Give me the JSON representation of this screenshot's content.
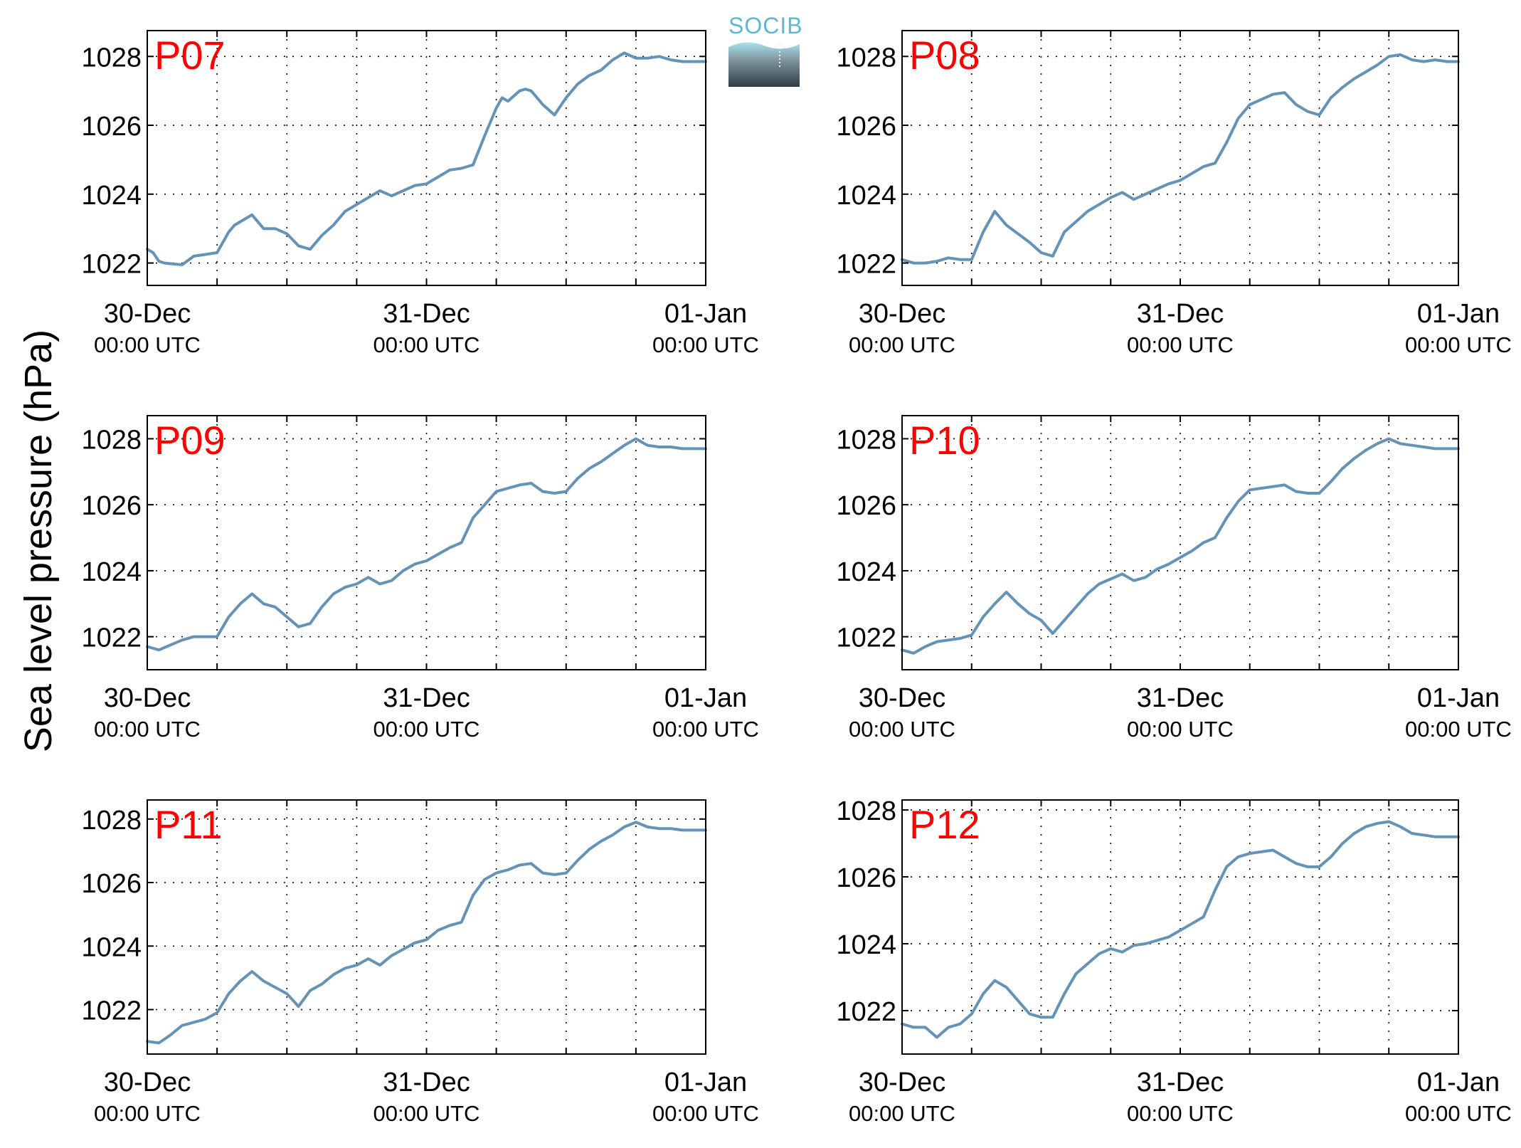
{
  "figure": {
    "ylabel": "Sea level pressure (hPa)",
    "logo_text": "SOCIB",
    "line_color": "#6593b8",
    "panel_label_color": "#ff0000"
  },
  "chart_data": [
    {
      "type": "line",
      "panel": "P07",
      "xticks": [
        {
          "date": "30-Dec",
          "time": "00:00 UTC"
        },
        {
          "date": "31-Dec",
          "time": "00:00 UTC"
        },
        {
          "date": "01-Jan",
          "time": "00:00 UTC"
        }
      ],
      "xlim_hours": [
        0,
        48
      ],
      "ylim": [
        1021.35,
        1028.75
      ],
      "yticks": [
        1022,
        1024,
        1026,
        1028
      ],
      "grid": true,
      "series": [
        {
          "x_hours": [
            0,
            0.5,
            1,
            1.5,
            2,
            3,
            4,
            5,
            6,
            7,
            7.5,
            8,
            9,
            10,
            11,
            12,
            13,
            14,
            15,
            16,
            17,
            18,
            19,
            20,
            21,
            22,
            23,
            24,
            24.5,
            25,
            26,
            27,
            28,
            29,
            30,
            30.5,
            31,
            32,
            32.5,
            33,
            34,
            35,
            36,
            37,
            38,
            39,
            40,
            41,
            42,
            43,
            44,
            45,
            46,
            47,
            48
          ],
          "y": [
            1022.4,
            1022.3,
            1022.05,
            1022,
            1021.98,
            1021.95,
            1022.2,
            1022.25,
            1022.3,
            1022.9,
            1023.1,
            1023.2,
            1023.4,
            1023.0,
            1023.0,
            1022.85,
            1022.5,
            1022.4,
            1022.8,
            1023.1,
            1023.5,
            1023.7,
            1023.9,
            1024.1,
            1023.95,
            1024.1,
            1024.25,
            1024.3,
            1024.4,
            1024.5,
            1024.7,
            1024.75,
            1024.85,
            1025.7,
            1026.5,
            1026.8,
            1026.7,
            1027.0,
            1027.05,
            1027.0,
            1026.6,
            1026.3,
            1026.8,
            1027.2,
            1027.45,
            1027.6,
            1027.9,
            1028.1,
            1027.95,
            1027.95,
            1028.0,
            1027.9,
            1027.85,
            1027.85,
            1027.85
          ]
        }
      ]
    },
    {
      "type": "line",
      "panel": "P08",
      "xticks": [
        {
          "date": "30-Dec",
          "time": "00:00 UTC"
        },
        {
          "date": "31-Dec",
          "time": "00:00 UTC"
        },
        {
          "date": "01-Jan",
          "time": "00:00 UTC"
        }
      ],
      "xlim_hours": [
        0,
        48
      ],
      "ylim": [
        1021.35,
        1028.75
      ],
      "yticks": [
        1022,
        1024,
        1026,
        1028
      ],
      "grid": true,
      "series": [
        {
          "x_hours": [
            0,
            1,
            2,
            3,
            4,
            5,
            6,
            7,
            8,
            9,
            10,
            11,
            12,
            13,
            14,
            15,
            16,
            17,
            18,
            19,
            20,
            21,
            22,
            23,
            24,
            25,
            26,
            27,
            28,
            29,
            30,
            31,
            32,
            33,
            34,
            35,
            36,
            37,
            38,
            39,
            40,
            41,
            42,
            43,
            44,
            45,
            46,
            47,
            48
          ],
          "y": [
            1022.1,
            1022.0,
            1022.0,
            1022.05,
            1022.15,
            1022.1,
            1022.1,
            1022.9,
            1023.5,
            1023.1,
            1022.85,
            1022.6,
            1022.3,
            1022.2,
            1022.9,
            1023.2,
            1023.5,
            1023.7,
            1023.9,
            1024.05,
            1023.85,
            1024.0,
            1024.15,
            1024.3,
            1024.4,
            1024.6,
            1024.8,
            1024.9,
            1025.5,
            1026.2,
            1026.6,
            1026.75,
            1026.9,
            1026.95,
            1026.6,
            1026.4,
            1026.3,
            1026.8,
            1027.1,
            1027.35,
            1027.55,
            1027.75,
            1028.0,
            1028.05,
            1027.9,
            1027.85,
            1027.9,
            1027.85,
            1027.85
          ]
        }
      ]
    },
    {
      "type": "line",
      "panel": "P09",
      "xticks": [
        {
          "date": "30-Dec",
          "time": "00:00 UTC"
        },
        {
          "date": "31-Dec",
          "time": "00:00 UTC"
        },
        {
          "date": "01-Jan",
          "time": "00:00 UTC"
        }
      ],
      "xlim_hours": [
        0,
        48
      ],
      "ylim": [
        1021.0,
        1028.7
      ],
      "yticks": [
        1022,
        1024,
        1026,
        1028
      ],
      "grid": true,
      "series": [
        {
          "x_hours": [
            0,
            1,
            2,
            3,
            4,
            5,
            6,
            7,
            8,
            9,
            10,
            11,
            12,
            13,
            14,
            15,
            16,
            17,
            18,
            19,
            20,
            21,
            22,
            23,
            24,
            25,
            26,
            27,
            28,
            29,
            30,
            31,
            32,
            33,
            34,
            35,
            36,
            37,
            38,
            39,
            40,
            41,
            42,
            43,
            44,
            45,
            46,
            47,
            48
          ],
          "y": [
            1021.7,
            1021.6,
            1021.75,
            1021.9,
            1022.0,
            1022.0,
            1022.0,
            1022.6,
            1023.0,
            1023.3,
            1023.0,
            1022.9,
            1022.6,
            1022.3,
            1022.4,
            1022.9,
            1023.3,
            1023.5,
            1023.6,
            1023.8,
            1023.6,
            1023.7,
            1024.0,
            1024.2,
            1024.3,
            1024.5,
            1024.7,
            1024.85,
            1025.6,
            1026.0,
            1026.4,
            1026.5,
            1026.6,
            1026.65,
            1026.4,
            1026.35,
            1026.4,
            1026.8,
            1027.1,
            1027.3,
            1027.55,
            1027.8,
            1028.0,
            1027.8,
            1027.75,
            1027.75,
            1027.7,
            1027.7,
            1027.7
          ]
        }
      ]
    },
    {
      "type": "line",
      "panel": "P10",
      "xticks": [
        {
          "date": "30-Dec",
          "time": "00:00 UTC"
        },
        {
          "date": "31-Dec",
          "time": "00:00 UTC"
        },
        {
          "date": "01-Jan",
          "time": "00:00 UTC"
        }
      ],
      "xlim_hours": [
        0,
        48
      ],
      "ylim": [
        1021.0,
        1028.7
      ],
      "yticks": [
        1022,
        1024,
        1026,
        1028
      ],
      "grid": true,
      "series": [
        {
          "x_hours": [
            0,
            1,
            2,
            3,
            4,
            5,
            6,
            7,
            8,
            9,
            10,
            11,
            12,
            13,
            14,
            15,
            16,
            17,
            18,
            19,
            20,
            21,
            22,
            23,
            24,
            25,
            26,
            27,
            28,
            29,
            30,
            31,
            32,
            33,
            34,
            35,
            36,
            37,
            38,
            39,
            40,
            41,
            42,
            43,
            44,
            45,
            46,
            47,
            48
          ],
          "y": [
            1021.6,
            1021.5,
            1021.7,
            1021.85,
            1021.9,
            1021.95,
            1022.05,
            1022.6,
            1023.0,
            1023.35,
            1023.0,
            1022.7,
            1022.5,
            1022.1,
            1022.5,
            1022.9,
            1023.3,
            1023.6,
            1023.75,
            1023.9,
            1023.7,
            1023.8,
            1024.05,
            1024.2,
            1024.4,
            1024.6,
            1024.85,
            1025.0,
            1025.6,
            1026.1,
            1026.45,
            1026.5,
            1026.55,
            1026.6,
            1026.4,
            1026.35,
            1026.35,
            1026.7,
            1027.1,
            1027.4,
            1027.65,
            1027.85,
            1028.0,
            1027.85,
            1027.8,
            1027.75,
            1027.7,
            1027.7,
            1027.7
          ]
        }
      ]
    },
    {
      "type": "line",
      "panel": "P11",
      "xticks": [
        {
          "date": "30-Dec",
          "time": "00:00 UTC"
        },
        {
          "date": "31-Dec",
          "time": "00:00 UTC"
        },
        {
          "date": "01-Jan",
          "time": "00:00 UTC"
        }
      ],
      "xlim_hours": [
        0,
        48
      ],
      "ylim": [
        1020.6,
        1028.6
      ],
      "yticks": [
        1022,
        1024,
        1026,
        1028
      ],
      "grid": true,
      "series": [
        {
          "x_hours": [
            0,
            1,
            2,
            3,
            4,
            5,
            6,
            7,
            8,
            9,
            10,
            11,
            12,
            13,
            14,
            15,
            16,
            17,
            18,
            19,
            20,
            21,
            22,
            23,
            24,
            25,
            26,
            27,
            28,
            29,
            30,
            31,
            32,
            33,
            34,
            35,
            36,
            37,
            38,
            39,
            40,
            41,
            42,
            43,
            44,
            45,
            46,
            47,
            48
          ],
          "y": [
            1021.0,
            1020.95,
            1021.2,
            1021.5,
            1021.6,
            1021.7,
            1021.9,
            1022.5,
            1022.9,
            1023.2,
            1022.9,
            1022.7,
            1022.5,
            1022.1,
            1022.6,
            1022.8,
            1023.1,
            1023.3,
            1023.4,
            1023.6,
            1023.4,
            1023.7,
            1023.9,
            1024.1,
            1024.2,
            1024.5,
            1024.65,
            1024.75,
            1025.6,
            1026.1,
            1026.3,
            1026.4,
            1026.55,
            1026.6,
            1026.3,
            1026.25,
            1026.3,
            1026.7,
            1027.05,
            1027.3,
            1027.5,
            1027.75,
            1027.9,
            1027.75,
            1027.7,
            1027.7,
            1027.65,
            1027.65,
            1027.65
          ]
        }
      ]
    },
    {
      "type": "line",
      "panel": "P12",
      "xticks": [
        {
          "date": "30-Dec",
          "time": "00:00 UTC"
        },
        {
          "date": "31-Dec",
          "time": "00:00 UTC"
        },
        {
          "date": "01-Jan",
          "time": "00:00 UTC"
        }
      ],
      "xlim_hours": [
        0,
        48
      ],
      "ylim": [
        1020.7,
        1028.3
      ],
      "yticks": [
        1022,
        1024,
        1026,
        1028
      ],
      "grid": true,
      "series": [
        {
          "x_hours": [
            0,
            1,
            2,
            3,
            4,
            5,
            6,
            7,
            8,
            9,
            10,
            11,
            12,
            13,
            14,
            15,
            16,
            17,
            18,
            19,
            20,
            21,
            22,
            23,
            24,
            25,
            26,
            27,
            28,
            29,
            30,
            31,
            32,
            33,
            34,
            35,
            36,
            37,
            38,
            39,
            40,
            41,
            42,
            43,
            44,
            45,
            46,
            47,
            48
          ],
          "y": [
            1021.6,
            1021.5,
            1021.5,
            1021.2,
            1021.5,
            1021.6,
            1021.9,
            1022.5,
            1022.9,
            1022.7,
            1022.3,
            1021.9,
            1021.8,
            1021.8,
            1022.5,
            1023.1,
            1023.4,
            1023.7,
            1023.85,
            1023.75,
            1023.95,
            1024.0,
            1024.1,
            1024.2,
            1024.4,
            1024.6,
            1024.8,
            1025.6,
            1026.3,
            1026.6,
            1026.7,
            1026.75,
            1026.8,
            1026.6,
            1026.4,
            1026.3,
            1026.3,
            1026.6,
            1027.0,
            1027.3,
            1027.5,
            1027.6,
            1027.65,
            1027.5,
            1027.3,
            1027.25,
            1027.2,
            1027.2,
            1027.2
          ]
        }
      ]
    }
  ]
}
